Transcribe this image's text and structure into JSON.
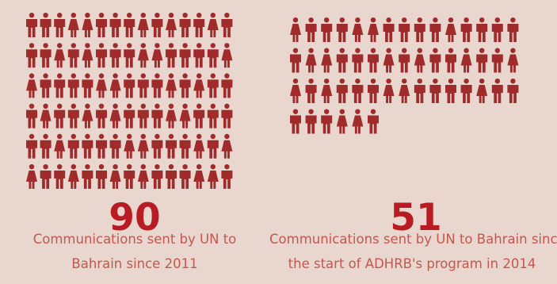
{
  "colors": {
    "background": "#e8d6cf",
    "figure": "#a02b2b",
    "number": "#b81c22",
    "caption": "#c2584f"
  },
  "icon": "person-icon",
  "chart_data": [
    {
      "type": "pictograph",
      "unit": "1 figure = 1 communication",
      "value": 90,
      "label": "90",
      "caption_lines": [
        "Communications sent by UN to",
        "Bahrain since 2011"
      ],
      "columns": 15
    },
    {
      "type": "pictograph",
      "unit": "1 figure = 1 communication",
      "value": 51,
      "label": "51",
      "caption_lines": [
        "Communications sent by UN to Bahrain since",
        "the start of ADHRB's program in 2014"
      ],
      "columns": 15
    }
  ]
}
